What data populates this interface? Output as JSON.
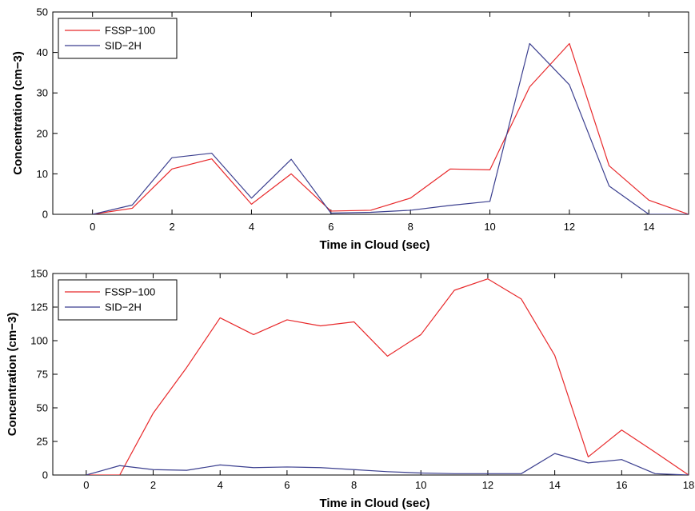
{
  "chart_data": [
    {
      "type": "line",
      "title": "",
      "xlabel": "Time in Cloud (sec)",
      "ylabel": "Concentration (cm−3)",
      "xlim": [
        -1,
        15
      ],
      "ylim": [
        0,
        50
      ],
      "xticks": [
        0,
        2,
        4,
        6,
        8,
        10,
        12,
        14
      ],
      "yticks": [
        0,
        10,
        20,
        30,
        40,
        50
      ],
      "legend_position": "top-left",
      "grid": false,
      "x": [
        0,
        1,
        2,
        3,
        4,
        5,
        6,
        7,
        8,
        9,
        10,
        11,
        12,
        13,
        14,
        15
      ],
      "series": [
        {
          "name": "FSSP−100",
          "color": "#e8292b",
          "values": [
            0,
            1.5,
            11.2,
            13.7,
            2.5,
            10,
            0.8,
            1,
            4,
            11.2,
            11,
            31.5,
            42.2,
            12,
            3.5,
            0
          ]
        },
        {
          "name": "SID−2H",
          "color": "#3b3f8f",
          "values": [
            0,
            2.3,
            14,
            15.1,
            4,
            13.6,
            0.3,
            0.5,
            1,
            2.2,
            3.2,
            42.2,
            32,
            7,
            0,
            0
          ]
        }
      ]
    },
    {
      "type": "line",
      "title": "",
      "xlabel": "Time in Cloud (sec)",
      "ylabel": "Concentration (cm−3)",
      "xlim": [
        -1,
        18
      ],
      "ylim": [
        0,
        150
      ],
      "xticks": [
        0,
        2,
        4,
        6,
        8,
        10,
        12,
        14,
        16,
        18
      ],
      "yticks": [
        0,
        25,
        50,
        75,
        100,
        125,
        150
      ],
      "legend_position": "top-left",
      "grid": false,
      "x": [
        0,
        1,
        2,
        3,
        4,
        5,
        6,
        7,
        8,
        9,
        10,
        11,
        12,
        13,
        14,
        15,
        16,
        17,
        18
      ],
      "series": [
        {
          "name": "FSSP−100",
          "color": "#e8292b",
          "values": [
            0,
            0,
            46,
            80,
            117,
            104.5,
            115.5,
            111,
            114,
            88.5,
            104.5,
            137.5,
            146,
            131,
            89,
            13.5,
            33.5,
            17,
            0
          ]
        },
        {
          "name": "SID−2H",
          "color": "#3b3f8f",
          "values": [
            0,
            7,
            4,
            3.5,
            7.5,
            5.5,
            6,
            5.5,
            4,
            2.5,
            1.5,
            1,
            1,
            1,
            16,
            9,
            11.5,
            1,
            0
          ]
        }
      ]
    }
  ]
}
